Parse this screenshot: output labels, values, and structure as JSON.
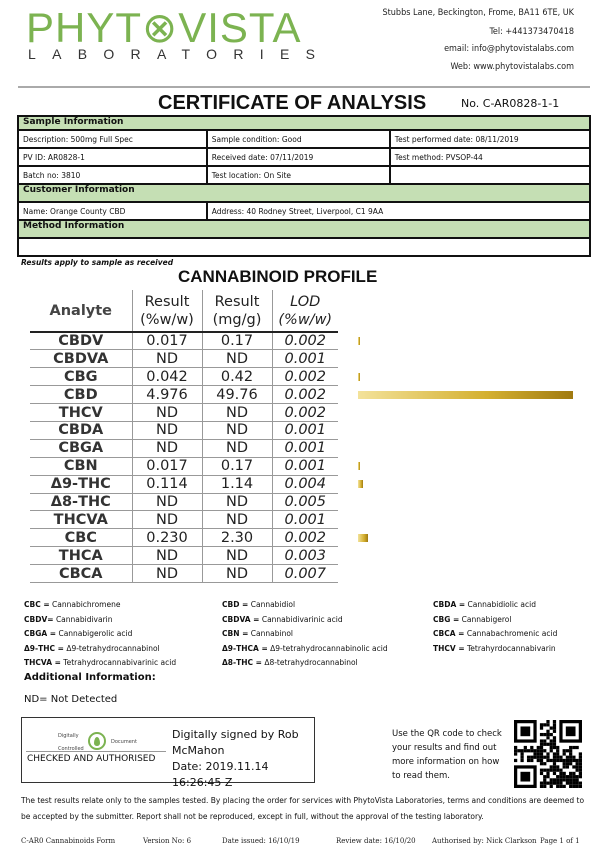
{
  "header": {
    "logo_main": "PHYT⊗VISTA",
    "logo_sub": "LABORATORIES",
    "address": "Stubbs Lane, Beckington, Frome, BA11 6TE, UK",
    "tel": "Tel: +441373470418",
    "email": "email: info@phytovistalabs.com",
    "web": "Web: www.phytovistalabs.com",
    "brand_color": "#7cb351"
  },
  "title": "CERTIFICATE OF ANALYSIS",
  "cert_no": "No. C-AR0828-1-1",
  "info": {
    "sample_heading": "Sample Information",
    "description": "Description: 500mg Full Spec",
    "condition": "Sample condition: Good",
    "test_date": "Test performed date: 08/11/2019",
    "pv_id": "PV ID: AR0828-1",
    "received": "Received date: 07/11/2019",
    "method": "Test method: PVSOP-44",
    "batch": "Batch no: 3810",
    "location": "Test location: On Site",
    "customer_heading": "Customer Information",
    "name": "Name: Orange County CBD",
    "cust_address": "Address: 40 Rodney Street, Liverpool, C1 9AA",
    "method_heading": "Method Information",
    "section_color": "#c5dfb4"
  },
  "note": "Results apply to sample as received",
  "profile": {
    "title": "CANNABINOID PROFILE",
    "headers": {
      "analyte": "Analyte",
      "r1a": "Result",
      "r1b": "(%w/w)",
      "r2a": "Result",
      "r2b": "(mg/g)",
      "loda": "LOD",
      "lodb": "(%w/w)"
    },
    "rows": [
      {
        "analyte": "CBDV",
        "pct": "0.017",
        "mg": "0.17",
        "lod": "0.002"
      },
      {
        "analyte": "CBDVA",
        "pct": "ND",
        "mg": "ND",
        "lod": "0.001"
      },
      {
        "analyte": "CBG",
        "pct": "0.042",
        "mg": "0.42",
        "lod": "0.002"
      },
      {
        "analyte": "CBD",
        "pct": "4.976",
        "mg": "49.76",
        "lod": "0.002"
      },
      {
        "analyte": "THCV",
        "pct": "ND",
        "mg": "ND",
        "lod": "0.002"
      },
      {
        "analyte": "CBDA",
        "pct": "ND",
        "mg": "ND",
        "lod": "0.001"
      },
      {
        "analyte": "CBGA",
        "pct": "ND",
        "mg": "ND",
        "lod": "0.001"
      },
      {
        "analyte": "CBN",
        "pct": "0.017",
        "mg": "0.17",
        "lod": "0.001"
      },
      {
        "analyte": "Δ9-THC",
        "pct": "0.114",
        "mg": "1.14",
        "lod": "0.004"
      },
      {
        "analyte": "Δ8-THC",
        "pct": "ND",
        "mg": "ND",
        "lod": "0.005"
      },
      {
        "analyte": "THCVA",
        "pct": "ND",
        "mg": "ND",
        "lod": "0.001"
      },
      {
        "analyte": "CBC",
        "pct": "0.230",
        "mg": "2.30",
        "lod": "0.002"
      },
      {
        "analyte": "THCA",
        "pct": "ND",
        "mg": "ND",
        "lod": "0.003"
      },
      {
        "analyte": "CBCA",
        "pct": "ND",
        "mg": "ND",
        "lod": "0.007"
      }
    ],
    "bar_color": "#d4b030"
  },
  "abbreviations": [
    [
      {
        "k": "CBC =",
        "v": "Cannabichromene"
      },
      {
        "k": "CBDV=",
        "v": "Cannabidivarin"
      },
      {
        "k": "CBGA =",
        "v": "Cannabigerolic acid"
      },
      {
        "k": "Δ9-THC =",
        "v": "Δ9-tetrahydrocannabinol"
      },
      {
        "k": "THCVA =",
        "v": "Tetrahydrocannabivarinic acid"
      }
    ],
    [
      {
        "k": "CBD =",
        "v": "Cannabidiol"
      },
      {
        "k": "CBDVA =",
        "v": "Cannabidivarinic acid"
      },
      {
        "k": "CBN =",
        "v": "Cannabinol"
      },
      {
        "k": "Δ9-THCA =",
        "v": "Δ9-tetrahydrocannabinolic acid"
      },
      {
        "k": "Δ8-THC =",
        "v": "Δ8-tetrahydrocannabinol"
      }
    ],
    [
      {
        "k": "CBDA =",
        "v": "Cannabidiolic acid"
      },
      {
        "k": "CBG =",
        "v": "Cannabigerol"
      },
      {
        "k": "CBCA =",
        "v": "Cannabachromenic acid"
      },
      {
        "k": "THCV =",
        "v": "Tetrahyrdocannabivarin"
      }
    ]
  ],
  "additional": {
    "heading": "Additional Information:",
    "nd": "ND= Not Detected"
  },
  "signature": {
    "stamp_top_left": "Digitally",
    "stamp_top_right": "Document",
    "stamp_bottom": "Controlled",
    "checked": "CHECKED AND AUTHORISED",
    "signed1": "Digitally signed by Rob",
    "signed2": "McMahon",
    "date": "Date: 2019.11.14 16:26:45 Z"
  },
  "qr": {
    "text": "Use the QR code to check your results and find out more information on how to read them."
  },
  "disclaimer": "The test results relate only to the samples tested.  By placing the order for services with PhytoVista Laboratories, terms and conditions are deemed to be accepted by the submitter. Report shall not be reproduced, except in full, without the approval of the testing laboratory.",
  "footer": {
    "form": "C-AR0 Cannabinoids Form",
    "version": "Version No:  6",
    "issued": "Date issued: 16/10/19",
    "review": "Review  date: 16/10/20",
    "authorised": "Authorised by: Nick Clarkson",
    "page": "Page  1 of 1"
  }
}
